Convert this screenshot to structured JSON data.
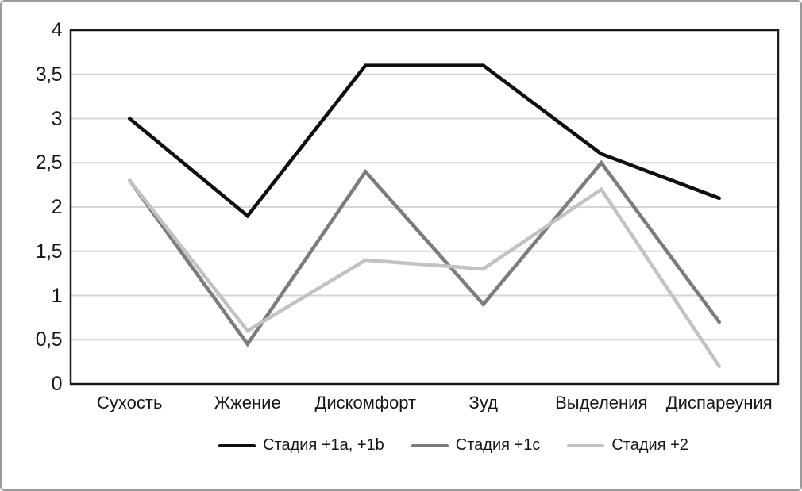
{
  "chart_data": {
    "type": "line",
    "categories": [
      "Сухость",
      "Жжение",
      "Дискомфорт",
      "Зуд",
      "Выделения",
      "Диспареуния"
    ],
    "series": [
      {
        "name": "Стадия +1a, +1b",
        "color": "#0f0f0f",
        "values": [
          3.0,
          1.9,
          3.6,
          3.6,
          2.6,
          2.1
        ]
      },
      {
        "name": "Стадия +1c",
        "color": "#7c7c7c",
        "values": [
          2.3,
          0.45,
          2.4,
          0.9,
          2.5,
          0.7
        ]
      },
      {
        "name": "Стадия +2",
        "color": "#c2c2c2",
        "values": [
          2.3,
          0.6,
          1.4,
          1.3,
          2.2,
          0.2
        ]
      }
    ],
    "title": "",
    "xlabel": "",
    "ylabel": "",
    "ylim": [
      0,
      4
    ],
    "y_tick_step": 0.5,
    "y_tick_labels": [
      "0",
      "0,5",
      "1",
      "1,5",
      "2",
      "2,5",
      "3",
      "3,5",
      "4"
    ],
    "grid": "horizontal",
    "legend_position": "bottom",
    "colors": {
      "gridline": "#d5d5d5",
      "plot_border": "#1b1b1b",
      "outer_border": "#9b9b9b",
      "text": "#161616",
      "background": "#ffffff"
    }
  }
}
